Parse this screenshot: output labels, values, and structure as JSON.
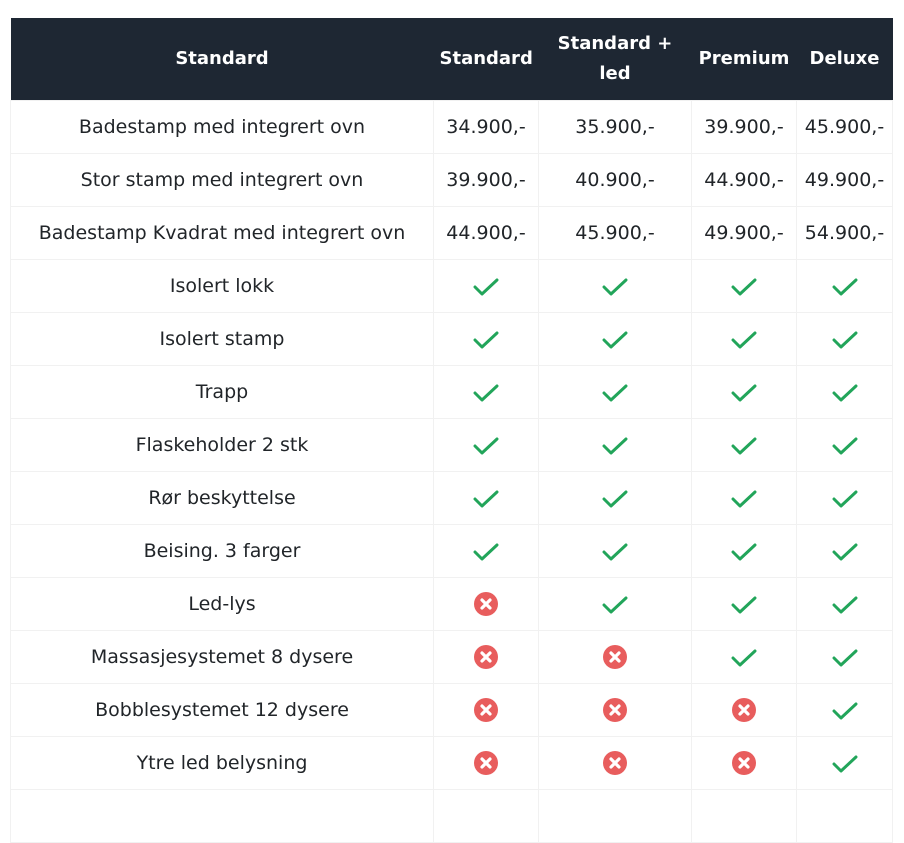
{
  "colors": {
    "header_bg": "#1e2733",
    "check": "#22a55a",
    "cross": "#e85d5d"
  },
  "table": {
    "headers": [
      "Standard",
      "Standard + led",
      "Premium",
      "Deluxe"
    ],
    "first_header": "Standard",
    "rows": [
      {
        "label": "Badestamp med integrert ovn",
        "cells": [
          "34.900,-",
          "35.900,-",
          "39.900,-",
          "45.900,-"
        ]
      },
      {
        "label": "Stor stamp med integrert ovn",
        "cells": [
          "39.900,-",
          "40.900,-",
          "44.900,-",
          "49.900,-"
        ]
      },
      {
        "label": "Badestamp Kvadrat med integrert ovn",
        "cells": [
          "44.900,-",
          "45.900,-",
          "49.900,-",
          "54.900,-"
        ]
      },
      {
        "label": "Isolert lokk",
        "cells": [
          true,
          true,
          true,
          true
        ]
      },
      {
        "label": "Isolert stamp",
        "cells": [
          true,
          true,
          true,
          true
        ]
      },
      {
        "label": "Trapp",
        "cells": [
          true,
          true,
          true,
          true
        ]
      },
      {
        "label": "Flaskeholder 2 stk",
        "cells": [
          true,
          true,
          true,
          true
        ]
      },
      {
        "label": "Rør beskyttelse",
        "cells": [
          true,
          true,
          true,
          true
        ]
      },
      {
        "label": "Beising. 3 farger",
        "cells": [
          true,
          true,
          true,
          true
        ]
      },
      {
        "label": "Led-lys",
        "cells": [
          false,
          true,
          true,
          true
        ]
      },
      {
        "label": "Massasjesystemet 8 dysere",
        "cells": [
          false,
          false,
          true,
          true
        ]
      },
      {
        "label": "Bobblesystemet 12 dysere",
        "cells": [
          false,
          false,
          false,
          true
        ]
      },
      {
        "label": "Ytre led belysning",
        "cells": [
          false,
          false,
          false,
          true
        ]
      }
    ]
  }
}
